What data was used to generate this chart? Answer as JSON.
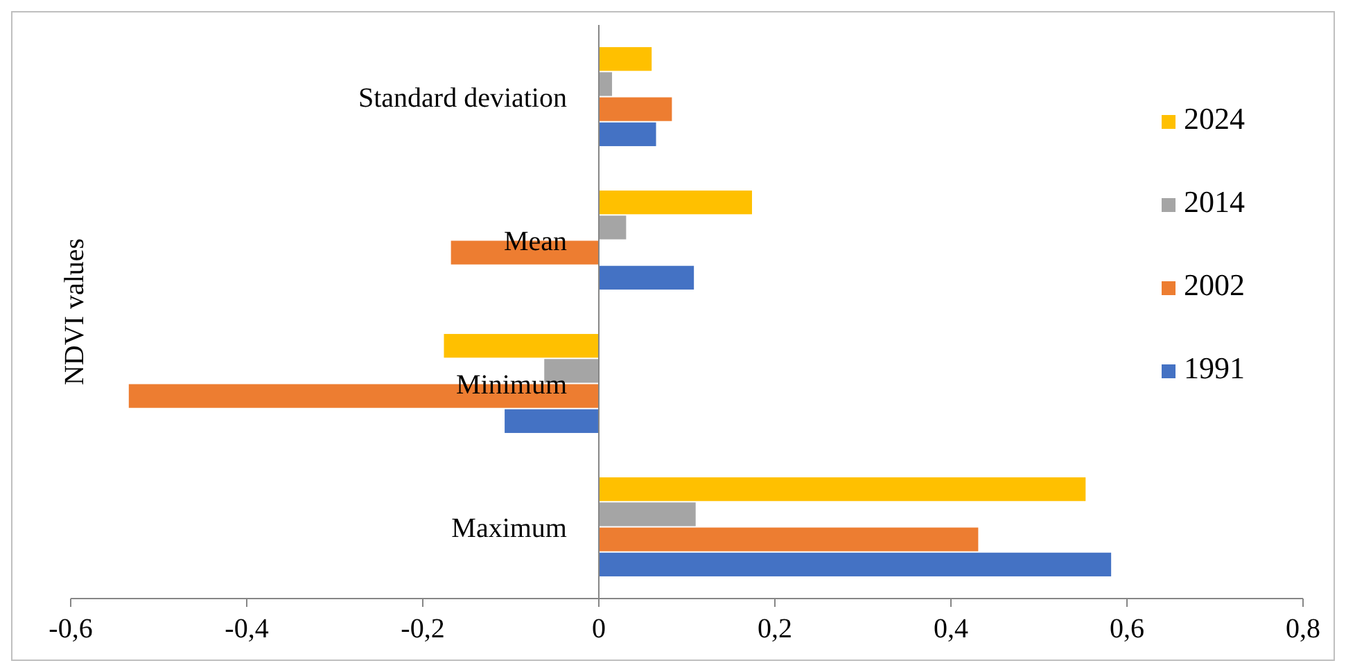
{
  "chart_data": {
    "type": "bar",
    "orientation": "horizontal",
    "ylabel": "NDVI values",
    "categories": [
      "Standard deviation",
      "Mean",
      "Minimum",
      "Maximum"
    ],
    "series": [
      {
        "name": "1991",
        "color": "#4472c4",
        "values": [
          0.065,
          0.108,
          -0.107,
          0.582
        ]
      },
      {
        "name": "2002",
        "color": "#ed7d31",
        "values": [
          0.083,
          -0.168,
          -0.534,
          0.431
        ]
      },
      {
        "name": "2014",
        "color": "#a5a5a5",
        "values": [
          0.015,
          0.031,
          -0.062,
          0.11
        ]
      },
      {
        "name": "2024",
        "color": "#ffc000",
        "values": [
          0.06,
          0.174,
          -0.176,
          0.553
        ]
      }
    ],
    "xlim": [
      -0.6,
      0.8
    ],
    "xticks": [
      {
        "value": -0.6,
        "label": "-0,6"
      },
      {
        "value": -0.4,
        "label": "-0,4"
      },
      {
        "value": -0.2,
        "label": "-0,2"
      },
      0,
      {
        "value": 0.2,
        "label": "0,2"
      },
      {
        "value": 0.4,
        "label": "0,4"
      },
      {
        "value": 0.6,
        "label": "0,6"
      },
      {
        "value": 0.8,
        "label": "0,8"
      }
    ],
    "grid": false,
    "legend": "right"
  }
}
